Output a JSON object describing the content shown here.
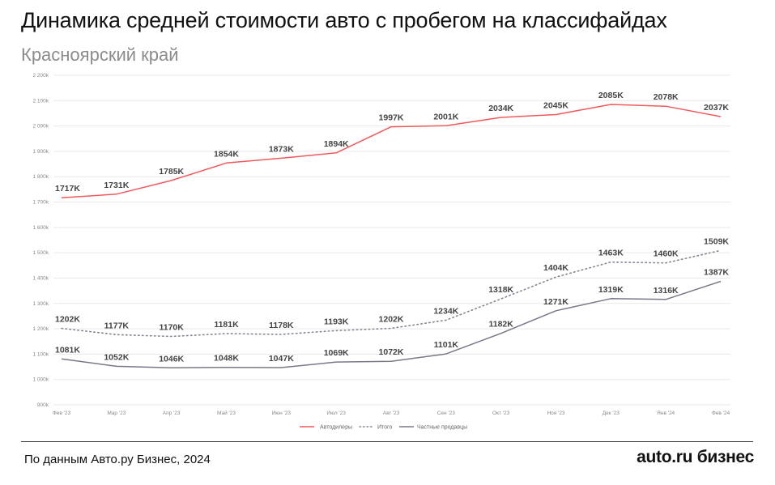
{
  "title": "Динамика средней стоимости авто с пробегом на классифайдах",
  "subtitle": "Красноярский край",
  "footer": {
    "source": "По данным Авто.ру Бизнес, 2024",
    "logo": "auto.ru бизнес"
  },
  "chart_data": {
    "type": "line",
    "categories": [
      "Фев '23",
      "Мар '23",
      "Апр '23",
      "Май '23",
      "Июн '23",
      "Июл '23",
      "Авг '23",
      "Сен '23",
      "Окт '23",
      "Ноя '23",
      "Дек '23",
      "Янв '24",
      "Фев '24"
    ],
    "ylim": [
      900,
      2200
    ],
    "yticks": [
      900,
      1000,
      1100,
      1200,
      1300,
      1400,
      1500,
      1600,
      1700,
      1800,
      1900,
      2000,
      2100,
      2200
    ],
    "ytick_labels": [
      "900k",
      "1 000k",
      "1 100k",
      "1 200k",
      "1 300k",
      "1 400k",
      "1 500k",
      "1 600k",
      "1 700k",
      "1 800k",
      "1 900k",
      "2 000k",
      "2 100k",
      "2 200k"
    ],
    "series": [
      {
        "name": "Автодилеры",
        "style": "solid",
        "color": "#f0595c",
        "values": [
          1717,
          1731,
          1785,
          1854,
          1873,
          1894,
          1997,
          2001,
          2034,
          2045,
          2085,
          2078,
          2037
        ],
        "labels": [
          "1717K",
          "1731K",
          "1785K",
          "1854K",
          "1873K",
          "1894K",
          "1997K",
          "2001K",
          "2034K",
          "2045K",
          "2085K",
          "2078K",
          "2037K"
        ]
      },
      {
        "name": "Итого",
        "style": "dotted",
        "color": "#8a8493",
        "values": [
          1202,
          1177,
          1170,
          1181,
          1178,
          1193,
          1202,
          1234,
          1318,
          1404,
          1463,
          1460,
          1509
        ],
        "labels": [
          "1202K",
          "1177K",
          "1170K",
          "1181K",
          "1178K",
          "1193K",
          "1202K",
          "1234K",
          "1318K",
          "1404K",
          "1463K",
          "1460K",
          "1509K"
        ]
      },
      {
        "name": "Частные продавцы",
        "style": "solid",
        "color": "#7d7589",
        "values": [
          1081,
          1052,
          1046,
          1048,
          1047,
          1069,
          1072,
          1101,
          1182,
          1271,
          1319,
          1316,
          1387
        ],
        "labels": [
          "1081K",
          "1052K",
          "1046K",
          "1048K",
          "1047K",
          "1069K",
          "1072K",
          "1101K",
          "1182K",
          "1271K",
          "1319K",
          "1316K",
          "1387K"
        ]
      }
    ],
    "grid": true,
    "legend": "bottom-center"
  }
}
